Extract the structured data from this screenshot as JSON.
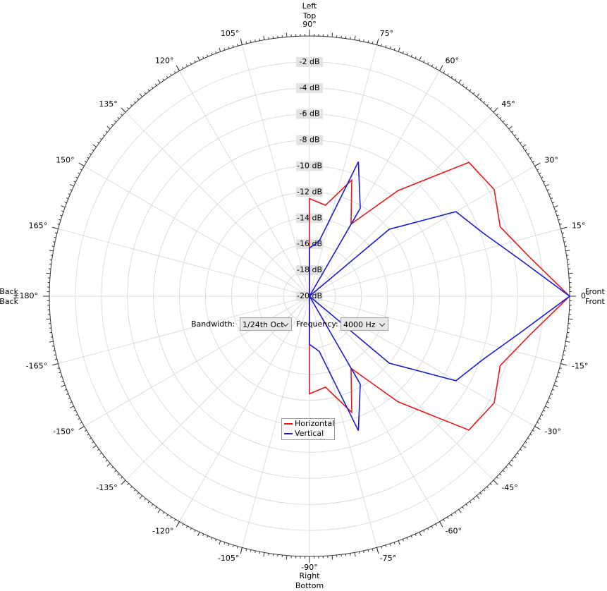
{
  "chart_data": {
    "type": "polar",
    "theta": [
      -170,
      -160,
      -150,
      -140,
      -130,
      -120,
      -110,
      -100,
      -90,
      -80,
      -70,
      -60,
      -50,
      -40,
      -30,
      -20,
      -10,
      0,
      10,
      20,
      30,
      40,
      50,
      60,
      70,
      80,
      90,
      100,
      110,
      120,
      130,
      140,
      150,
      160,
      170,
      180
    ],
    "series": [
      {
        "name": "Horizontal",
        "color": "#e31a1a",
        "values": [
          -20,
          -20,
          -20,
          -20,
          -20,
          -20,
          -20,
          -20,
          -12.5,
          -12.9,
          -10.5,
          -13.6,
          -9.4,
          -4.0,
          -3.6,
          -4.4,
          -2.8,
          0,
          -2.8,
          -4.4,
          -3.6,
          -4.0,
          -9.4,
          -13.6,
          -10.5,
          -12.9,
          -12.5,
          -20,
          -20,
          -20,
          -20,
          -20,
          -20,
          -20,
          -20,
          -20
        ]
      },
      {
        "name": "Vertical",
        "color": "#1a1ad0",
        "values": [
          -20,
          -20,
          -20,
          -20,
          -20,
          -20,
          -20,
          -20,
          -16.3,
          -15.7,
          -9.0,
          -12.2,
          -20,
          -12.0,
          -7.0,
          -5.8,
          -3.6,
          0,
          -3.6,
          -5.8,
          -7.0,
          -12.0,
          -20,
          -12.2,
          -9.0,
          -15.7,
          -16.3,
          -20,
          -20,
          -20,
          -20,
          -20,
          -20,
          -20,
          -20,
          -20
        ]
      }
    ],
    "rlim": [
      -20,
      0
    ],
    "rticks": [
      {
        "value": -20,
        "label": "-20 dB"
      },
      {
        "value": -18,
        "label": "-18 dB"
      },
      {
        "value": -16,
        "label": "-16 dB"
      },
      {
        "value": -14,
        "label": "-14 dB"
      },
      {
        "value": -12,
        "label": "-12 dB"
      },
      {
        "value": -10,
        "label": "-10 dB"
      },
      {
        "value": -8,
        "label": "-8 dB"
      },
      {
        "value": -6,
        "label": "-6 dB"
      },
      {
        "value": -4,
        "label": "-4 dB"
      },
      {
        "value": -2,
        "label": "-2 dB"
      }
    ],
    "thetaticks": [
      {
        "value": 0,
        "label": "0°"
      },
      {
        "value": 15,
        "label": "15°"
      },
      {
        "value": 30,
        "label": "30°"
      },
      {
        "value": 45,
        "label": "45°"
      },
      {
        "value": 60,
        "label": "60°"
      },
      {
        "value": 75,
        "label": "75°"
      },
      {
        "value": 90,
        "label": "90°"
      },
      {
        "value": 105,
        "label": "105°"
      },
      {
        "value": 120,
        "label": "120°"
      },
      {
        "value": 135,
        "label": "135°"
      },
      {
        "value": 150,
        "label": "150°"
      },
      {
        "value": 165,
        "label": "165°"
      },
      {
        "value": 180,
        "label": "±180°"
      },
      {
        "value": -165,
        "label": "-165°"
      },
      {
        "value": -150,
        "label": "-150°"
      },
      {
        "value": -135,
        "label": "-135°"
      },
      {
        "value": -120,
        "label": "-120°"
      },
      {
        "value": -105,
        "label": "-105°"
      },
      {
        "value": -90,
        "label": "-90°"
      },
      {
        "value": -75,
        "label": "-75°"
      },
      {
        "value": -60,
        "label": "-60°"
      },
      {
        "value": -45,
        "label": "-45°"
      },
      {
        "value": -30,
        "label": "-30°"
      },
      {
        "value": -15,
        "label": "-15°"
      }
    ],
    "direction_labels": {
      "top": [
        "Left",
        "Top"
      ],
      "bottom": [
        "Right",
        "Bottom"
      ],
      "left": [
        "Back",
        "Back"
      ],
      "right": [
        "Front",
        "Front"
      ]
    },
    "grid": true
  },
  "controls": {
    "bandwidth_label": "Bandwidth:",
    "bandwidth": "1/24th Oct",
    "frequency_label": "Frequency:",
    "frequency": "4000 Hz"
  }
}
